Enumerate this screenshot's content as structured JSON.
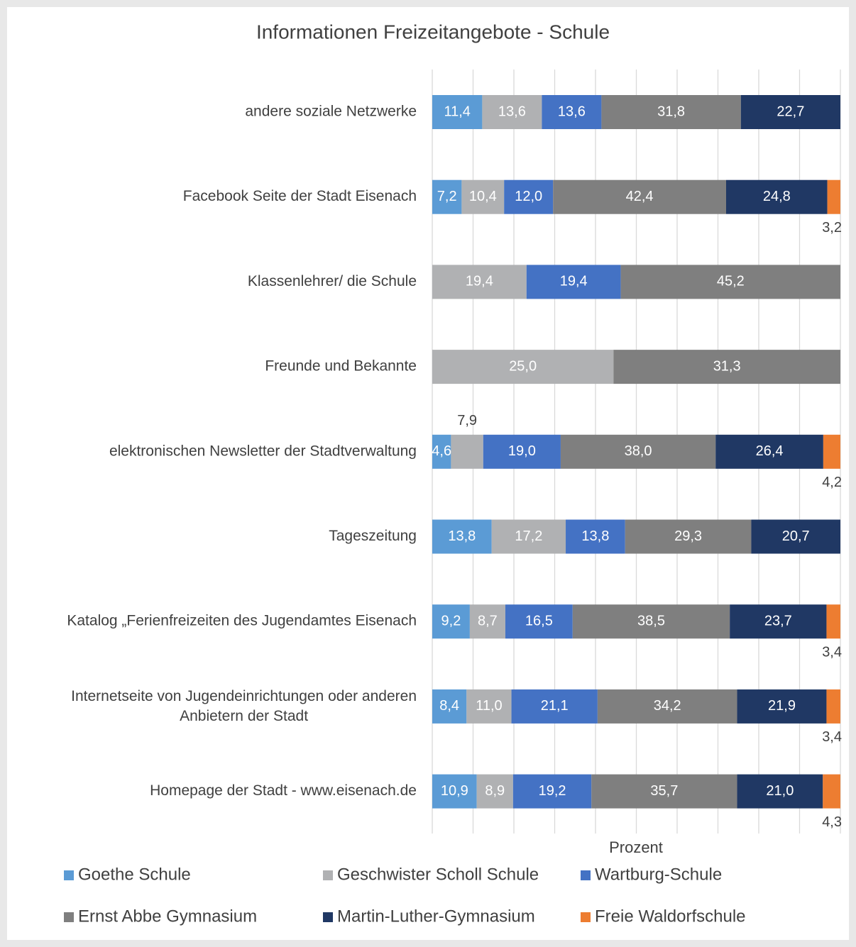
{
  "chart_data": {
    "type": "bar",
    "orientation": "horizontal",
    "stacked": "percent",
    "title": "Informationen Freizeitangebote - Schule",
    "xlabel": "Prozent",
    "xlim": [
      0,
      100
    ],
    "xticks": [
      0,
      10,
      20,
      30,
      40,
      50,
      60,
      70,
      80,
      90,
      100
    ],
    "grid": true,
    "legend": "bottom",
    "categories": [
      "andere soziale Netzwerke",
      "Facebook Seite der Stadt Eisenach",
      "Klassenlehrer/ die Schule",
      "Freunde und Bekannte",
      "elektronischen Newsletter der Stadtverwaltung",
      "Tageszeitung",
      "Katalog „Ferienfreizeiten des Jugendamtes Eisenach",
      "Internetseite von Jugendeinrichtungen oder anderen Anbietern der Stadt",
      "Homepage der Stadt - www.eisenach.de"
    ],
    "series": [
      {
        "name": "Goethe Schule",
        "color": "#5b9bd5",
        "values": [
          11.4,
          7.2,
          null,
          null,
          4.6,
          13.8,
          9.2,
          8.4,
          10.9
        ],
        "value_labels": [
          "11,4",
          "7,2",
          null,
          null,
          "4,6",
          "13,8",
          "9,2",
          "8,4",
          "10,9"
        ]
      },
      {
        "name": "Geschwister Scholl Schule",
        "color": "#b0b1b3",
        "values": [
          13.6,
          10.4,
          19.4,
          25.0,
          7.9,
          17.2,
          8.7,
          11.0,
          8.9
        ],
        "value_labels": [
          "13,6",
          "10,4",
          "19,4",
          "25,0",
          "7,9",
          "17,2",
          "8,7",
          "11,0",
          "8,9"
        ]
      },
      {
        "name": "Wartburg-Schule",
        "color": "#4472c4",
        "values": [
          13.6,
          12.0,
          19.4,
          null,
          19.0,
          13.8,
          16.5,
          21.1,
          19.2
        ],
        "value_labels": [
          "13,6",
          "12,0",
          "19,4",
          null,
          "19,0",
          "13,8",
          "16,5",
          "21,1",
          "19,2"
        ]
      },
      {
        "name": "Ernst Abbe Gymnasium",
        "color": "#7f7f7f",
        "values": [
          31.8,
          42.4,
          45.2,
          31.3,
          38.0,
          29.3,
          38.5,
          34.2,
          35.7
        ],
        "value_labels": [
          "31,8",
          "42,4",
          "45,2",
          "31,3",
          "38,0",
          "29,3",
          "38,5",
          "34,2",
          "35,7"
        ]
      },
      {
        "name": "Martin-Luther-Gymnasium",
        "color": "#203864",
        "values": [
          22.7,
          24.8,
          null,
          null,
          26.4,
          20.7,
          23.7,
          21.9,
          21.0
        ],
        "value_labels": [
          "22,7",
          "24,8",
          null,
          null,
          "26,4",
          "20,7",
          "23,7",
          "21,9",
          "21,0"
        ]
      },
      {
        "name": "Freie Waldorfschule",
        "color": "#ed7d31",
        "values": [
          null,
          3.2,
          null,
          null,
          4.2,
          null,
          3.4,
          3.4,
          4.3
        ],
        "value_labels": [
          null,
          "3,2",
          null,
          null,
          "4,2",
          null,
          "3,4",
          "3,4",
          "4,3"
        ]
      }
    ]
  }
}
